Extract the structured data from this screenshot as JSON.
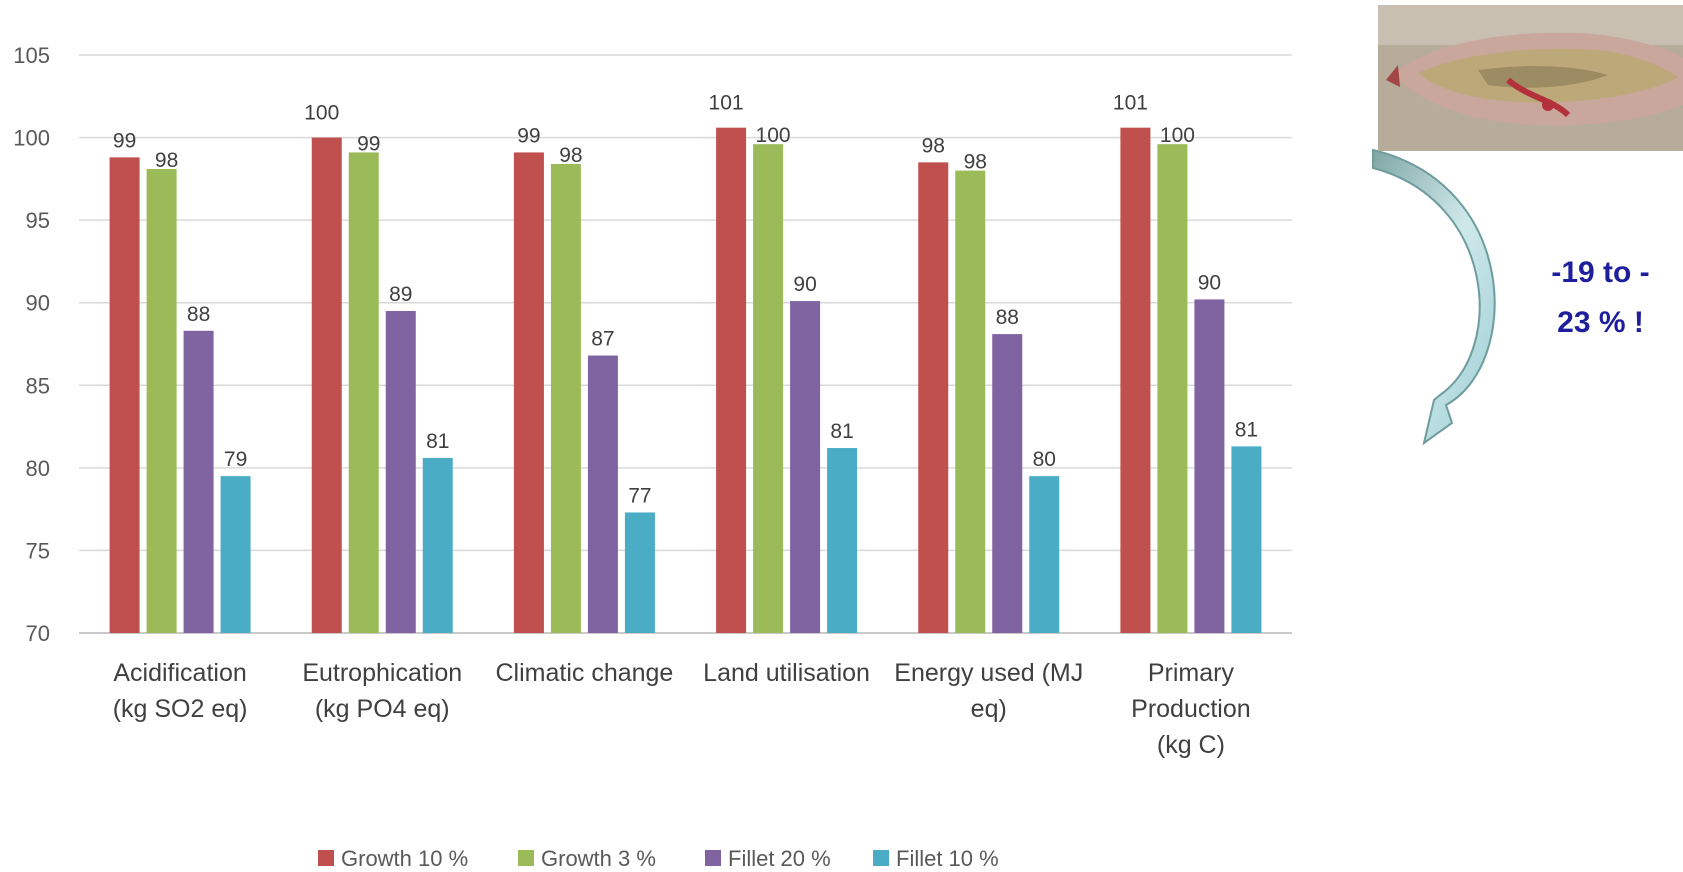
{
  "chart_data": {
    "type": "bar",
    "categories": [
      [
        "Acidification",
        "(kg SO2 eq)"
      ],
      [
        "Eutrophication",
        "(kg PO4 eq)"
      ],
      [
        "Climatic change"
      ],
      [
        "Land utilisation"
      ],
      [
        "Energy used (MJ",
        "eq)"
      ],
      [
        "Primary",
        "Production",
        "(kg C)"
      ]
    ],
    "series": [
      {
        "name": "Growth 10 %",
        "color": "#c0504d",
        "values": [
          98.8,
          100.0,
          99.1,
          100.6,
          98.5,
          100.6
        ],
        "labels": [
          "99",
          "100",
          "99",
          "101",
          "98",
          "101"
        ]
      },
      {
        "name": "Growth 3 %",
        "color": "#9bbb59",
        "values": [
          98.1,
          99.1,
          98.4,
          99.6,
          98.0,
          99.6
        ],
        "labels": [
          "98",
          "99",
          "98",
          "100",
          "98",
          "100"
        ]
      },
      {
        "name": "Fillet 20 %",
        "color": "#8064a2",
        "values": [
          88.3,
          89.5,
          86.8,
          90.1,
          88.1,
          90.2
        ],
        "labels": [
          "88",
          "89",
          "87",
          "90",
          "88",
          "90"
        ]
      },
      {
        "name": "Fillet 10 %",
        "color": "#4bacc6",
        "values": [
          79.5,
          80.6,
          77.3,
          81.2,
          79.5,
          81.3
        ],
        "labels": [
          "79",
          "81",
          "77",
          "81",
          "80",
          "81"
        ]
      }
    ],
    "ylim": [
      70,
      105
    ],
    "yticks": [
      70,
      75,
      80,
      85,
      90,
      95,
      100,
      105
    ],
    "grid": true,
    "legend_position": "bottom"
  },
  "annotation": {
    "line1": "-19 to -",
    "line2": "23 % !",
    "color": "#1f1f9e"
  },
  "photo": {
    "icon": "fish-fillet-photo"
  }
}
